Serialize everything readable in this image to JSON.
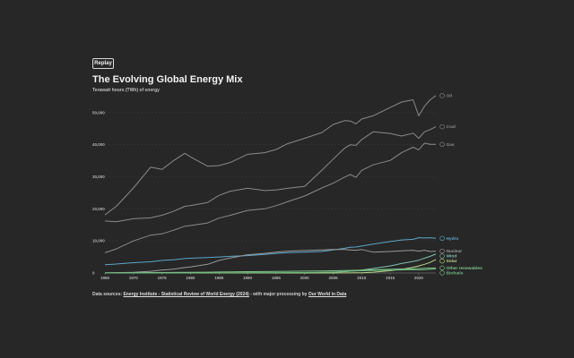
{
  "controls": {
    "replay_label": "Replay"
  },
  "header": {
    "title": "The Evolving Global Energy Mix",
    "subtitle": "Terawatt hours (TWh) of energy"
  },
  "footer": {
    "prefix": "Data sources: ",
    "source1": "Energy Institute - Statistical Review of World Energy (2024)",
    "middle": " - with major processing by ",
    "source2": "Our World in Data"
  },
  "colors": {
    "background": "#272727",
    "oil": "#8a8a8a",
    "coal": "#8a8a8a",
    "gas": "#8a8a8a",
    "hydro": "#5ea6c8",
    "nuclear": "#9a9a9a",
    "wind": "#7fbfb0",
    "solar": "#b8d48a",
    "other": "#7cc38a",
    "biofuels": "#6fb87f"
  },
  "chart_data": {
    "type": "line",
    "title": "The Evolving Global Energy Mix",
    "subtitle": "Terawatt hours (TWh) of energy",
    "xlim": [
      1965,
      2023
    ],
    "ylim": [
      0,
      60000
    ],
    "x_ticks": [
      1965,
      1970,
      1975,
      1980,
      1985,
      1990,
      1995,
      2000,
      2005,
      2010,
      2015,
      2020
    ],
    "y_ticks": [
      0,
      10000,
      20000,
      30000,
      40000,
      50000
    ],
    "y_tick_labels": [
      "0",
      "10,000",
      "20,000",
      "30,000",
      "40,000",
      "50,000"
    ],
    "grid": true,
    "legend": "end-of-line labels",
    "x": [
      1965,
      1967,
      1970,
      1973,
      1975,
      1977,
      1979,
      1980,
      1983,
      1985,
      1987,
      1990,
      1993,
      1995,
      1997,
      2000,
      2003,
      2005,
      2007,
      2008,
      2009,
      2010,
      2012,
      2015,
      2017,
      2019,
      2020,
      2021,
      2022,
      2023
    ],
    "series": [
      {
        "name": "Oil",
        "icon": "oil-icon",
        "values": [
          18100,
          20800,
          26500,
          33000,
          32300,
          35000,
          37300,
          36200,
          33300,
          33500,
          34500,
          37000,
          37500,
          38500,
          40300,
          42000,
          43800,
          46300,
          47500,
          47400,
          46500,
          48000,
          49000,
          51600,
          53300,
          54000,
          49000,
          52000,
          54000,
          55300
        ]
      },
      {
        "name": "Coal",
        "icon": "coal-icon",
        "values": [
          16200,
          16000,
          16900,
          17200,
          18000,
          19200,
          20800,
          21000,
          22000,
          24200,
          25500,
          26400,
          25700,
          25900,
          26400,
          27000,
          32000,
          35500,
          38900,
          40000,
          39800,
          41600,
          44000,
          43500,
          42700,
          43600,
          42000,
          44000,
          44700,
          45600
        ]
      },
      {
        "name": "Gas",
        "icon": "gas-icon",
        "values": [
          6300,
          7500,
          10000,
          11800,
          12200,
          13300,
          14600,
          14800,
          15600,
          17100,
          18000,
          19500,
          20000,
          21000,
          22200,
          24000,
          26500,
          28000,
          29900,
          30700,
          29800,
          32000,
          33700,
          35100,
          37500,
          39200,
          38400,
          40500,
          40100,
          40100
        ]
      },
      {
        "name": "Hydro",
        "icon": "hydro-icon",
        "values": [
          2600,
          2800,
          3200,
          3500,
          3900,
          4100,
          4500,
          4600,
          4800,
          5000,
          5200,
          5400,
          5800,
          6100,
          6300,
          6500,
          6700,
          7200,
          7700,
          8000,
          8100,
          8400,
          9000,
          9800,
          10300,
          10500,
          11000,
          10900,
          11000,
          10800
        ]
      },
      {
        "name": "Nuclear",
        "icon": "nuclear-icon",
        "values": [
          30,
          100,
          200,
          520,
          900,
          1200,
          1700,
          1900,
          2700,
          3900,
          4700,
          5700,
          6100,
          6500,
          6800,
          7000,
          7200,
          7300,
          7300,
          7200,
          7100,
          7300,
          6500,
          6700,
          6900,
          7100,
          6800,
          7100,
          6700,
          6800
        ]
      },
      {
        "name": "Wind",
        "icon": "wind-icon",
        "values": [
          0,
          0,
          0,
          0,
          0,
          0,
          0,
          0,
          0,
          0,
          0,
          10,
          20,
          25,
          35,
          80,
          160,
          280,
          460,
          580,
          730,
          900,
          1400,
          2200,
          2950,
          3600,
          4000,
          4600,
          5200,
          5900
        ]
      },
      {
        "name": "Solar",
        "icon": "solar-icon",
        "values": [
          0,
          0,
          0,
          0,
          0,
          0,
          0,
          0,
          0,
          0,
          0,
          0,
          0,
          0,
          1,
          2,
          5,
          12,
          25,
          40,
          60,
          90,
          250,
          700,
          1150,
          1800,
          2200,
          2700,
          3300,
          4200
        ]
      },
      {
        "name": "Other renewables",
        "icon": "other-renewables-icon",
        "values": [
          80,
          90,
          110,
          130,
          150,
          170,
          200,
          210,
          260,
          310,
          360,
          420,
          460,
          500,
          540,
          580,
          640,
          700,
          770,
          800,
          840,
          900,
          1000,
          1150,
          1250,
          1350,
          1400,
          1450,
          1500,
          1550
        ]
      },
      {
        "name": "Biofuels",
        "icon": "biofuels-icon",
        "values": [
          0,
          0,
          0,
          0,
          0,
          0,
          10,
          15,
          60,
          80,
          90,
          110,
          110,
          120,
          130,
          140,
          200,
          260,
          410,
          560,
          620,
          700,
          790,
          880,
          960,
          1000,
          950,
          1050,
          1150,
          1250
        ]
      }
    ]
  }
}
